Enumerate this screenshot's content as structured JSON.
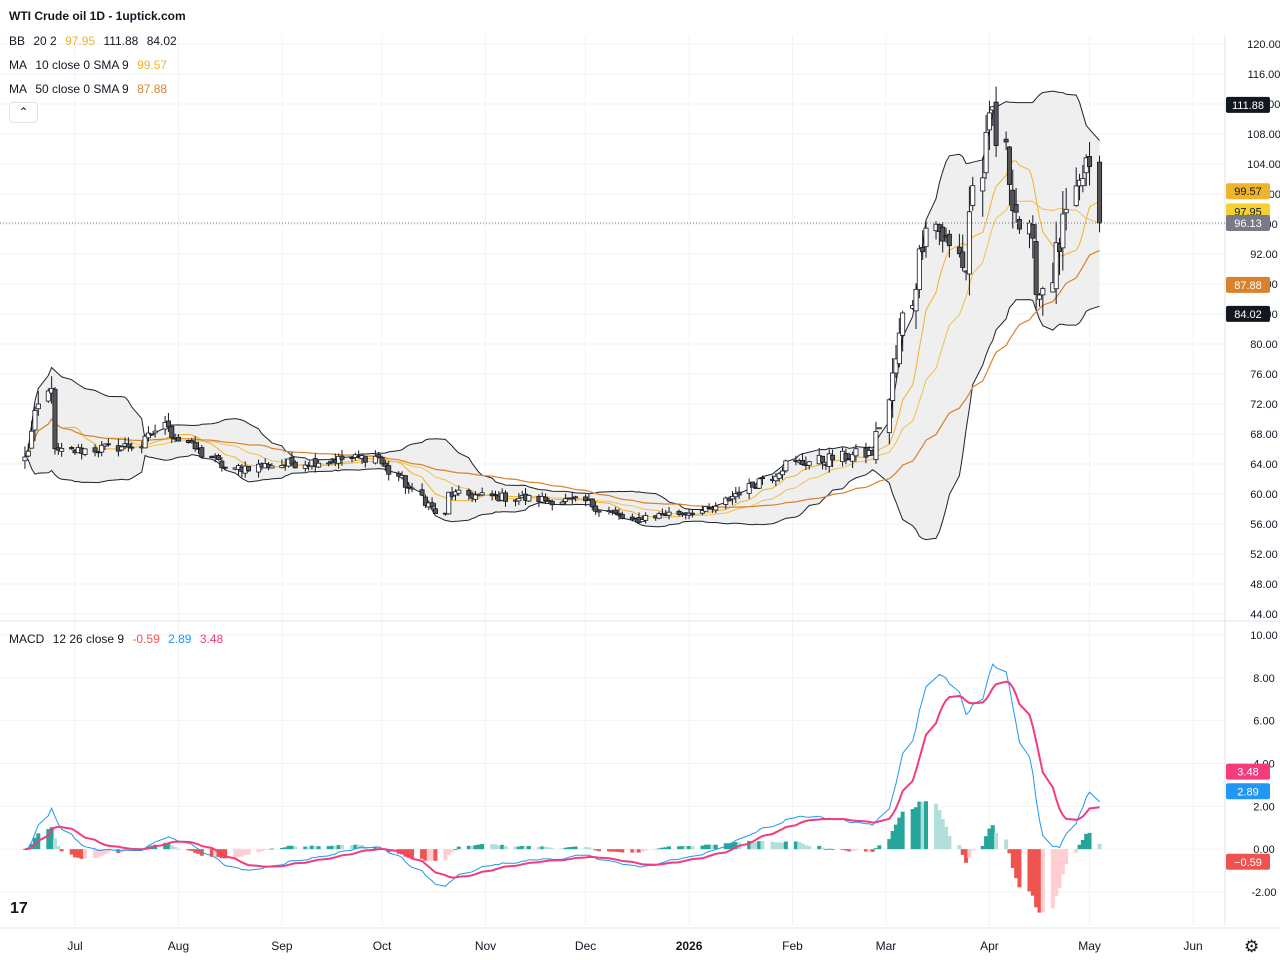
{
  "title": "WTI Crude oil  1D - 1uptick.com",
  "legend": {
    "bb": {
      "name": "BB",
      "params": "20 2",
      "basis": "97.95",
      "upper": "111.88",
      "lower": "84.02"
    },
    "ma10": {
      "name": "MA",
      "params": "10 close 0 SMA 9",
      "value": "99.57"
    },
    "ma50": {
      "name": "MA",
      "params": "50 close 0 SMA 9",
      "value": "87.88"
    },
    "macd": {
      "name": "MACD",
      "params": "12 26 close 9",
      "hist": "-0.59",
      "macd": "2.89",
      "signal": "3.48"
    }
  },
  "colors": {
    "up_candle": "#ffffff",
    "down_candle": "#555555",
    "bb_line": "#1e222d",
    "bb_fill": "#e8e8e8",
    "ma10": "#f0b429",
    "ma50": "#d9822b",
    "macd_line": "#2196f3",
    "signal_line": "#f23c7d",
    "hist_pos_strong": "#26a69a",
    "hist_pos_weak": "#b2dfdb",
    "hist_neg_strong": "#ef5350",
    "hist_neg_weak": "#ffcdd2",
    "last_price": "#787b86"
  },
  "icons": [
    "chevron-up-icon",
    "tradingview-logo-icon",
    "gear-icon"
  ],
  "tradingview_mark": "17",
  "chart_data": [
    {
      "type": "candlestick",
      "title": "WTI Crude oil  1D - 1uptick.com",
      "ylim": [
        43,
        122
      ],
      "y_ticks": [
        44,
        48,
        52,
        56,
        60,
        64,
        68,
        72,
        76,
        80,
        84,
        88,
        92,
        96,
        100,
        104,
        108,
        112,
        116,
        120
      ],
      "y_tick_labels": [
        "44.00",
        "48.00",
        "52.00",
        "56.00",
        "60.00",
        "64.00",
        "68.00",
        "72.00",
        "76.00",
        "80.00",
        "84.00",
        "88.00",
        "92.00",
        "96.00",
        "100.00",
        "104.00",
        "108.00",
        "112.00",
        "116.00",
        "120.00"
      ],
      "x_labels": [
        "Jul",
        "Aug",
        "Sep",
        "Oct",
        "Nov",
        "Dec",
        "2026",
        "Feb",
        "Mar",
        "Apr",
        "May",
        "Jun"
      ],
      "price_labels": [
        {
          "text": "111.88",
          "value": 111.88,
          "kind": "bb-upper"
        },
        {
          "text": "99.57",
          "value": 99.57,
          "kind": "ma10"
        },
        {
          "text": "97.95",
          "value": 97.95,
          "kind": "bb-basis"
        },
        {
          "text": "96.13",
          "value": 96.13,
          "kind": "last"
        },
        {
          "text": "87.88",
          "value": 87.88,
          "kind": "ma50"
        },
        {
          "text": "84.02",
          "value": 84.02,
          "kind": "bb-lower"
        }
      ],
      "segments": [
        {
          "start": "2025-06-15",
          "end": "2025-06-24",
          "from": 64.5,
          "to": 75.0,
          "vol": 2.0
        },
        {
          "start": "2025-06-25",
          "end": "2025-07-20",
          "from": 65.5,
          "to": 66.5,
          "vol": 1.0
        },
        {
          "start": "2025-07-21",
          "end": "2025-07-29",
          "from": 66.5,
          "to": 69.5,
          "vol": 1.2
        },
        {
          "start": "2025-07-30",
          "end": "2025-08-18",
          "from": 68.0,
          "to": 63.0,
          "vol": 1.0
        },
        {
          "start": "2025-08-19",
          "end": "2025-09-30",
          "from": 63.5,
          "to": 65.0,
          "vol": 1.0
        },
        {
          "start": "2025-10-01",
          "end": "2025-10-20",
          "from": 64.0,
          "to": 57.0,
          "vol": 1.0
        },
        {
          "start": "2025-10-21",
          "end": "2025-11-30",
          "from": 60.0,
          "to": 59.0,
          "vol": 0.9
        },
        {
          "start": "2025-12-01",
          "end": "2025-12-17",
          "from": 59.0,
          "to": 56.0,
          "vol": 0.8
        },
        {
          "start": "2025-12-18",
          "end": "2026-01-10",
          "from": 57.0,
          "to": 58.0,
          "vol": 0.8
        },
        {
          "start": "2026-01-11",
          "end": "2026-01-31",
          "from": 59.0,
          "to": 64.0,
          "vol": 1.1
        },
        {
          "start": "2026-02-01",
          "end": "2026-02-25",
          "from": 64.0,
          "to": 65.5,
          "vol": 1.2
        },
        {
          "start": "2026-02-26",
          "end": "2026-03-15",
          "from": 67.0,
          "to": 97.0,
          "vol": 3.0
        },
        {
          "start": "2026-03-16",
          "end": "2026-03-25",
          "from": 96.0,
          "to": 90.0,
          "vol": 3.0
        },
        {
          "start": "2026-03-26",
          "end": "2026-04-02",
          "from": 98.0,
          "to": 111.0,
          "vol": 4.0
        },
        {
          "start": "2026-04-03",
          "end": "2026-04-16",
          "from": 107.0,
          "to": 87.0,
          "vol": 4.0
        },
        {
          "start": "2026-04-17",
          "end": "2026-04-30",
          "from": 88.0,
          "to": 104.0,
          "vol": 3.5
        },
        {
          "start": "2026-05-01",
          "end": "2026-05-04",
          "from": 102.0,
          "to": 96.13,
          "vol": 3.0
        }
      ],
      "last_close": 96.13,
      "x_range": [
        "2025-06-15",
        "2026-06-11"
      ]
    },
    {
      "type": "histogram+line",
      "title": "MACD 12 26 close 9",
      "ylim": [
        -3.8,
        10.5
      ],
      "y_ticks": [
        -2,
        0,
        2,
        4,
        6,
        8,
        10
      ],
      "y_tick_labels": [
        "-2.00",
        "0.00",
        "2.00",
        "4.00",
        "6.00",
        "8.00",
        "10.00"
      ],
      "series": [
        {
          "name": "MACD",
          "values_label": "2.89"
        },
        {
          "name": "Signal",
          "values_label": "3.48"
        },
        {
          "name": "Histogram",
          "values_label": "-0.59"
        }
      ],
      "price_labels": [
        {
          "text": "3.48",
          "value": 3.48,
          "kind": "signal"
        },
        {
          "text": "2.89",
          "value": 2.89,
          "kind": "macd"
        },
        {
          "text": "−0.59",
          "value": -0.59,
          "kind": "hist"
        }
      ]
    }
  ]
}
